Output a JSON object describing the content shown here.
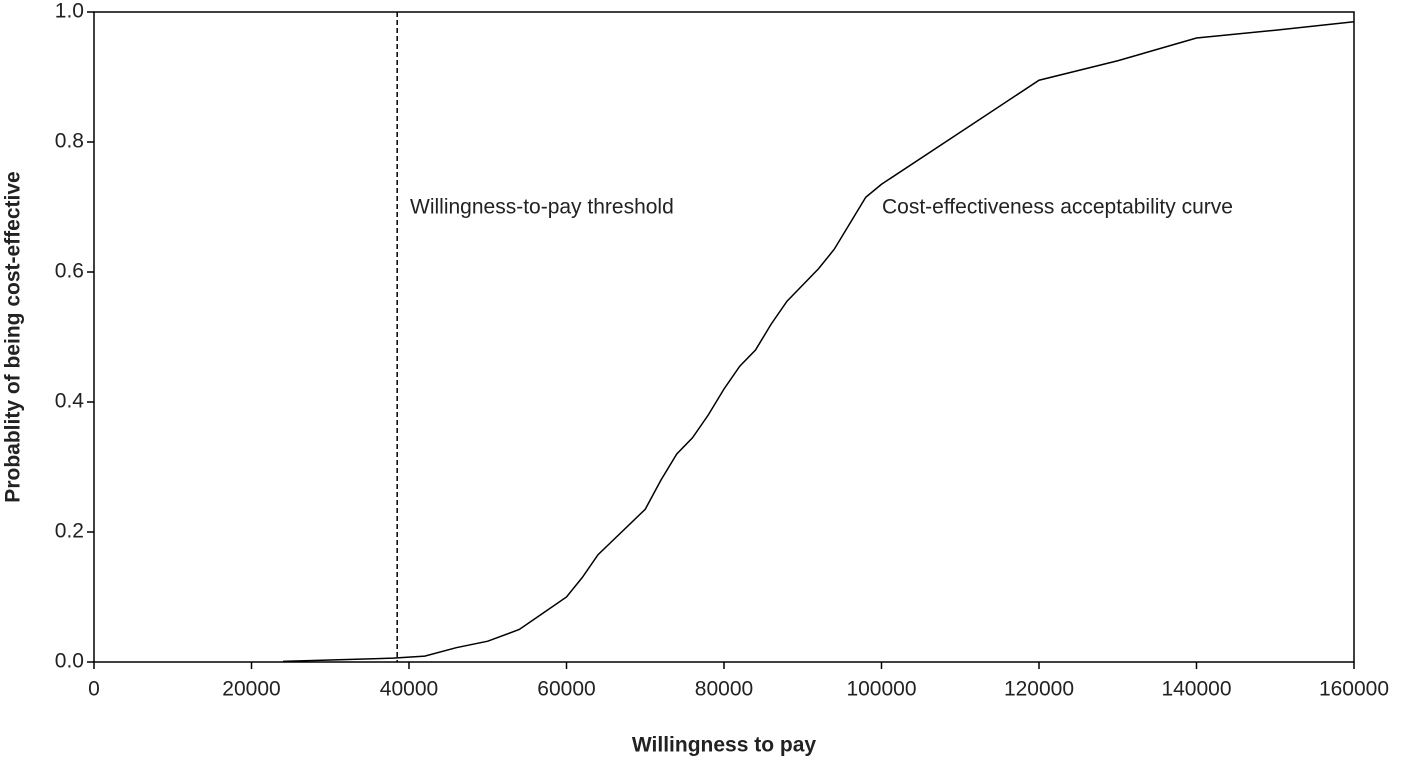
{
  "chart_data": {
    "type": "line",
    "x_label": "Willingness to pay",
    "y_label": "Probablity of being cost-effective",
    "annotations": [
      "Willingness-to-pay threshold",
      "Cost-effectiveness acceptability curve"
    ],
    "threshold": 38500,
    "x": [
      24000,
      30000,
      38000,
      42000,
      46000,
      50000,
      54000,
      57000,
      60000,
      62000,
      64000,
      67000,
      70000,
      72000,
      74000,
      76000,
      78000,
      80000,
      82000,
      84000,
      86000,
      88000,
      90000,
      92000,
      94000,
      96000,
      98000,
      100000,
      110000,
      120000,
      130000,
      140000,
      150000,
      160000
    ],
    "values": [
      0.001,
      0.003,
      0.006,
      0.009,
      0.022,
      0.032,
      0.05,
      0.075,
      0.1,
      0.13,
      0.165,
      0.2,
      0.235,
      0.28,
      0.32,
      0.345,
      0.38,
      0.42,
      0.455,
      0.48,
      0.52,
      0.555,
      0.58,
      0.605,
      0.635,
      0.675,
      0.715,
      0.735,
      0.815,
      0.895,
      0.925,
      0.96,
      0.972,
      0.985
    ],
    "color": "#000000",
    "xlim": [
      0,
      160000
    ],
    "ylim": [
      0,
      1
    ],
    "xticks": [
      0,
      20000,
      40000,
      60000,
      80000,
      100000,
      120000,
      140000,
      160000
    ],
    "yticks": [
      {
        "value": 0,
        "label": "0.0"
      },
      0.2,
      0.4,
      0.6,
      0.8,
      {
        "value": 1,
        "label": "1.0"
      }
    ]
  }
}
